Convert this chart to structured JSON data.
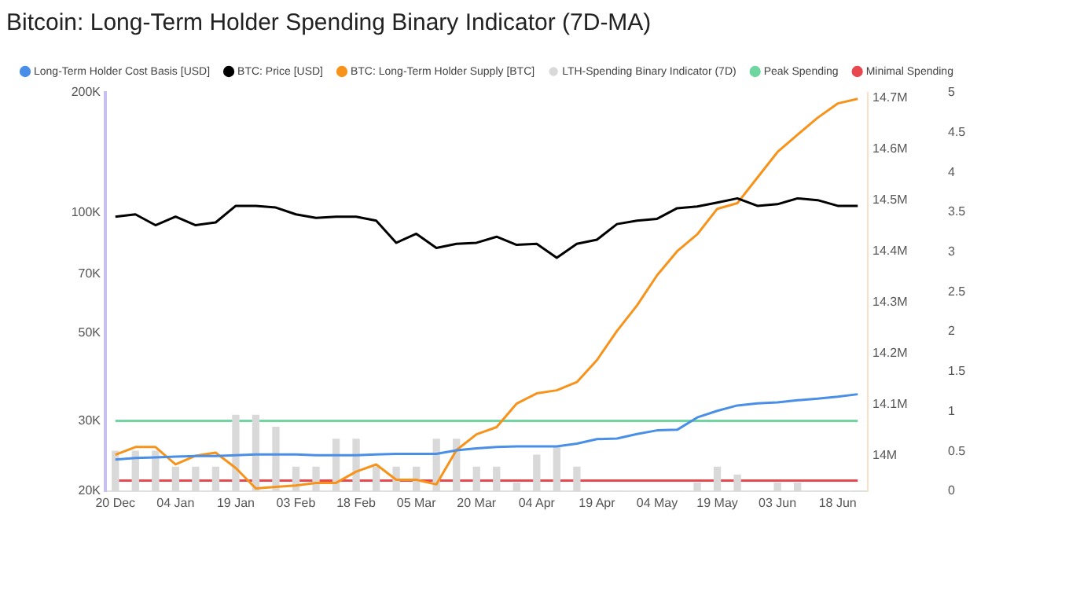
{
  "chart_data": {
    "type": "line",
    "title": "Bitcoin: Long-Term Holder Spending Binary Indicator (7D-MA)",
    "categories": [
      "20 Dec",
      null,
      null,
      "04 Jan",
      null,
      null,
      "19 Jan",
      null,
      null,
      "03 Feb",
      null,
      null,
      "18 Feb",
      null,
      null,
      "05 Mar",
      null,
      null,
      "20 Mar",
      null,
      null,
      "04 Apr",
      null,
      null,
      "19 Apr",
      null,
      null,
      "04 May",
      null,
      null,
      "19 May",
      null,
      null,
      "03 Jun",
      null,
      null,
      "18 Jun",
      null
    ],
    "log": "y",
    "ylim": [
      20000,
      200000
    ],
    "yticks": [
      {
        "value": 20000,
        "label": "20K"
      },
      {
        "value": 30000,
        "label": "30K"
      },
      {
        "value": 50000,
        "label": "50K"
      },
      {
        "value": 70000,
        "label": "70K"
      },
      {
        "value": 100000,
        "label": "100K"
      },
      {
        "value": 200000,
        "label": "200K"
      }
    ],
    "y2lim": [
      13931000,
      14710000
    ],
    "y2ticks": [
      {
        "value": 14000000,
        "label": "14M"
      },
      {
        "value": 14100000,
        "label": "14.1M"
      },
      {
        "value": 14200000,
        "label": "14.2M"
      },
      {
        "value": 14300000,
        "label": "14.3M"
      },
      {
        "value": 14400000,
        "label": "14.4M"
      },
      {
        "value": 14500000,
        "label": "14.5M"
      },
      {
        "value": 14600000,
        "label": "14.6M"
      },
      {
        "value": 14700000,
        "label": "14.7M"
      }
    ],
    "y3lim": [
      0,
      5
    ],
    "y3ticks": [
      0,
      0.5,
      1,
      1.5,
      2,
      2.5,
      3,
      3.5,
      4,
      4.5,
      5
    ],
    "grid": false,
    "legend": "top",
    "marker": "none",
    "line_style": "solid",
    "series": [
      {
        "name": "Long-Term Holder Cost Basis [USD]",
        "color": "#4a8fe7",
        "values": [
          24000,
          24200,
          24300,
          24400,
          24500,
          24500,
          24600,
          24700,
          24700,
          24700,
          24600,
          24600,
          24600,
          24700,
          24800,
          24800,
          24800,
          25300,
          25600,
          25800,
          25900,
          25900,
          25900,
          26300,
          27000,
          27100,
          27800,
          28400,
          28500,
          30600,
          31800,
          32800,
          33200,
          33400,
          33800,
          34100,
          34500,
          35000
        ]
      },
      {
        "name": "BTC: Price [USD]",
        "color": "#000000",
        "values": [
          97700,
          99000,
          93000,
          97700,
          93000,
          94500,
          104000,
          104000,
          103000,
          99000,
          97000,
          97700,
          97700,
          95500,
          84000,
          88500,
          81500,
          83500,
          84000,
          87000,
          83000,
          83500,
          77000,
          83500,
          85500,
          93600,
          95500,
          96500,
          102600,
          103600,
          106000,
          108600,
          104000,
          105000,
          108600,
          107500,
          104000,
          104000
        ]
      },
      {
        "name": "BTC: Long-Term Holder Supply [BTC]",
        "color": "#f7931a",
        "axis": "y2",
        "values": [
          14002000,
          14017000,
          14017000,
          13983000,
          14000000,
          14006000,
          13976000,
          13936000,
          13939000,
          13942000,
          13947000,
          13947000,
          13969000,
          13983000,
          13953000,
          13953000,
          13944000,
          14011000,
          14042000,
          14056000,
          14102000,
          14122000,
          14128000,
          14144000,
          14187000,
          14244000,
          14294000,
          14353000,
          14400000,
          14433000,
          14483000,
          14494000,
          14544000,
          14594000,
          14628000,
          14661000,
          14689000,
          14698000
        ]
      },
      {
        "name": "LTH-Spending Binary Indicator (7D)",
        "type": "bar",
        "color": "#d9d9d9",
        "axis": "y3",
        "values": [
          0.5,
          0.5,
          0.5,
          0.3,
          0.3,
          0.3,
          0.95,
          0.95,
          0.8,
          0.3,
          0.3,
          0.65,
          0.65,
          0.3,
          0.3,
          0.3,
          0.65,
          0.65,
          0.3,
          0.3,
          0.1,
          0.45,
          0.55,
          0.3,
          0,
          0,
          0,
          0,
          0,
          0.1,
          0.3,
          0.2,
          0,
          0.1,
          0.1,
          0,
          0,
          0
        ]
      },
      {
        "name": "Peak Spending",
        "color": "#6fd6a0",
        "axis": "y3",
        "values": [
          0.88,
          0.88,
          0.88,
          0.88,
          0.88,
          0.88,
          0.88,
          0.88,
          0.88,
          0.88,
          0.88,
          0.88,
          0.88,
          0.88,
          0.88,
          0.88,
          0.88,
          0.88,
          0.88,
          0.88,
          0.88,
          0.88,
          0.88,
          0.88,
          0.88,
          0.88,
          0.88,
          0.88,
          0.88,
          0.88,
          0.88,
          0.88,
          0.88,
          0.88,
          0.88,
          0.88,
          0.88,
          0.88
        ]
      },
      {
        "name": "Minimal Spending",
        "color": "#e8484f",
        "axis": "y3",
        "values": [
          0.13,
          0.13,
          0.13,
          0.13,
          0.13,
          0.13,
          0.13,
          0.13,
          0.13,
          0.13,
          0.13,
          0.13,
          0.13,
          0.13,
          0.13,
          0.13,
          0.13,
          0.13,
          0.13,
          0.13,
          0.13,
          0.13,
          0.13,
          0.13,
          0.13,
          0.13,
          0.13,
          0.13,
          0.13,
          0.13,
          0.13,
          0.13,
          0.13,
          0.13,
          0.13,
          0.13,
          0.13,
          0.13
        ]
      }
    ]
  }
}
